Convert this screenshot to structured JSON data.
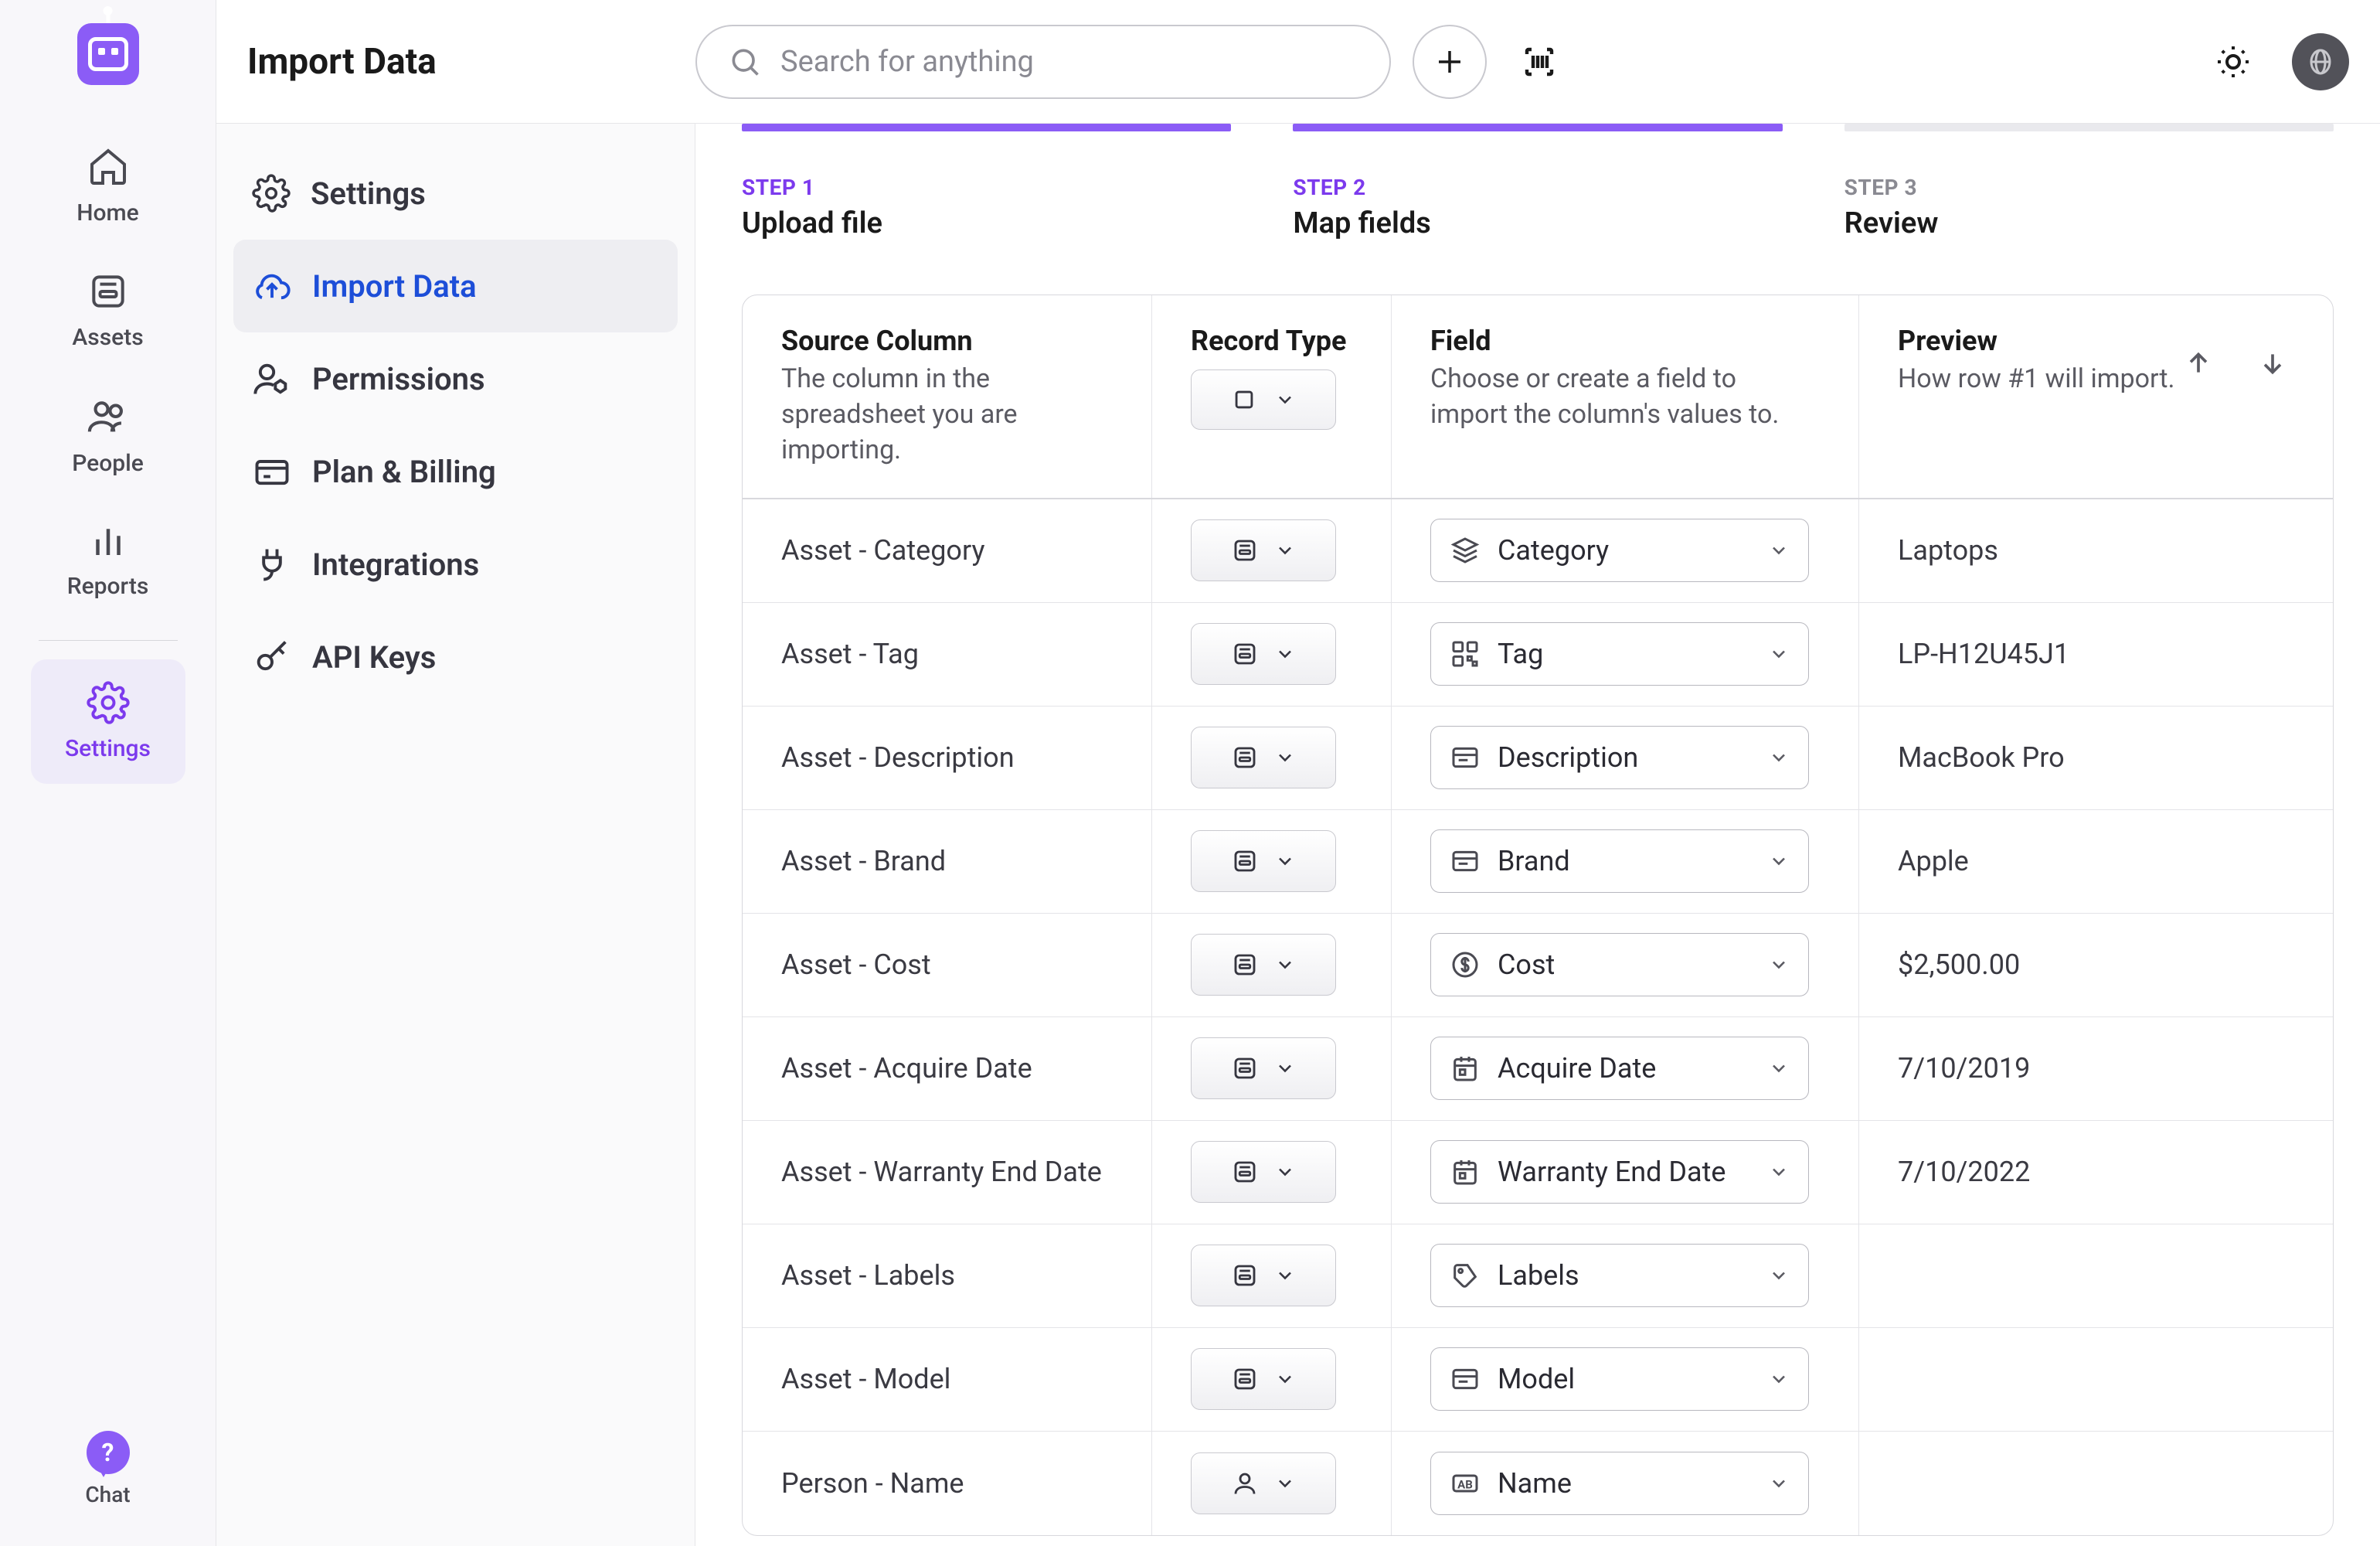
{
  "header": {
    "title": "Import Data",
    "search_placeholder": "Search for anything"
  },
  "main_nav": [
    {
      "label": "Home"
    },
    {
      "label": "Assets"
    },
    {
      "label": "People"
    },
    {
      "label": "Reports"
    },
    {
      "label": "Settings"
    }
  ],
  "chat_label": "Chat",
  "sidebar": [
    {
      "label": "Settings"
    },
    {
      "label": "Import Data"
    },
    {
      "label": "Permissions"
    },
    {
      "label": "Plan & Billing"
    },
    {
      "label": "Integrations"
    },
    {
      "label": "API Keys"
    }
  ],
  "steps": [
    {
      "label": "STEP 1",
      "title": "Upload file"
    },
    {
      "label": "STEP 2",
      "title": "Map fields"
    },
    {
      "label": "STEP 3",
      "title": "Review"
    }
  ],
  "columns": {
    "source": {
      "title": "Source Column",
      "sub": "The column in the spreadsheet you are importing."
    },
    "type": {
      "title": "Record Type"
    },
    "field": {
      "title": "Field",
      "sub": "Choose or create a field to import the column's values to."
    },
    "preview": {
      "title": "Preview",
      "sub": "How row #1 will import."
    }
  },
  "rows": [
    {
      "source": "Asset - Category",
      "type": "asset",
      "field_icon": "stack",
      "field": "Category",
      "preview": "Laptops"
    },
    {
      "source": "Asset - Tag",
      "type": "asset",
      "field_icon": "qr",
      "field": "Tag",
      "preview": "LP-H12U45J1"
    },
    {
      "source": "Asset - Description",
      "type": "asset",
      "field_icon": "card",
      "field": "Description",
      "preview": "MacBook Pro"
    },
    {
      "source": "Asset - Brand",
      "type": "asset",
      "field_icon": "card",
      "field": "Brand",
      "preview": "Apple"
    },
    {
      "source": "Asset - Cost",
      "type": "asset",
      "field_icon": "dollar",
      "field": "Cost",
      "preview": "$2,500.00"
    },
    {
      "source": "Asset - Acquire Date",
      "type": "asset",
      "field_icon": "calendar",
      "field": "Acquire Date",
      "preview": "7/10/2019"
    },
    {
      "source": "Asset - Warranty End Date",
      "type": "asset",
      "field_icon": "calendar",
      "field": "Warranty End Date",
      "preview": "7/10/2022"
    },
    {
      "source": "Asset - Labels",
      "type": "asset",
      "field_icon": "tag",
      "field": "Labels",
      "preview": ""
    },
    {
      "source": "Asset - Model",
      "type": "asset",
      "field_icon": "card",
      "field": "Model",
      "preview": ""
    },
    {
      "source": "Person - Name",
      "type": "person",
      "field_icon": "ab",
      "field": "Name",
      "preview": ""
    }
  ]
}
